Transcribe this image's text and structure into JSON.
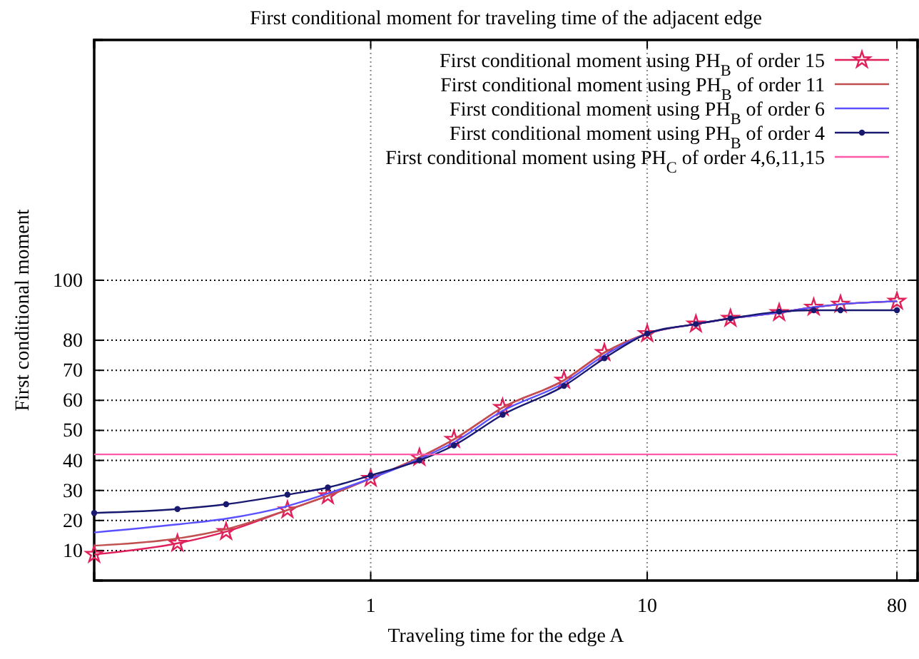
{
  "chart_data": {
    "type": "line",
    "title": "First conditional moment for traveling time of the adjacent edge",
    "xlabel": "Traveling time for the edge A",
    "ylabel": "First conditional moment",
    "log": "x",
    "xlim": [
      0.1,
      95
    ],
    "xticks": [
      1,
      10,
      80
    ],
    "ylim": [
      0,
      180
    ],
    "yticks": [
      10,
      20,
      30,
      40,
      50,
      60,
      70,
      80,
      100
    ],
    "grid": true,
    "legend": "top right",
    "line_style": "solid",
    "x": [
      0.1,
      0.2,
      0.3,
      0.5,
      0.7,
      1,
      1.5,
      2,
      3,
      5,
      7,
      10,
      15,
      20,
      30,
      40,
      50,
      80
    ],
    "series": [
      {
        "name": "First conditional moment using PH$_{B}$ of order 15",
        "color": "#e0205a",
        "marker": "star",
        "values": [
          8.7,
          12.4,
          16.3,
          23.5,
          28.2,
          34,
          41,
          47,
          57.6,
          66.7,
          75.9,
          82.2,
          85.4,
          87.3,
          89.2,
          91,
          92,
          93
        ]
      },
      {
        "name": "First conditional moment using PH$_{B}$ of order 11",
        "color": "#c05050",
        "marker": "none",
        "values": [
          11.6,
          14,
          17.1,
          23.5,
          28.2,
          34,
          41,
          47,
          57.6,
          66.7,
          75.9,
          82.2,
          85.4,
          87.3,
          89.2,
          91,
          92,
          93
        ]
      },
      {
        "name": "First conditional moment using PH$_{B}$ of order 6",
        "color": "#5a50ff",
        "marker": "none",
        "values": [
          16,
          18.7,
          20.6,
          24.8,
          29,
          34,
          40.5,
          46,
          56.5,
          65.8,
          75,
          82.2,
          85.4,
          87.3,
          89.2,
          91,
          92,
          93
        ]
      },
      {
        "name": "First conditional moment using PH$_{B}$ of order 4",
        "color": "#191970",
        "marker": "circle",
        "values": [
          22.5,
          23.8,
          25.4,
          28.6,
          31,
          35,
          40,
          45,
          55.2,
          64.8,
          74,
          82.2,
          85.4,
          87.3,
          89.5,
          90,
          90,
          90
        ]
      },
      {
        "name": "First conditional moment using PH$_{C}$ of order 4,6,11,15",
        "color": "#ff5aa8",
        "marker": "none",
        "x": [
          0.1,
          80
        ],
        "values": [
          42,
          42
        ]
      }
    ]
  }
}
